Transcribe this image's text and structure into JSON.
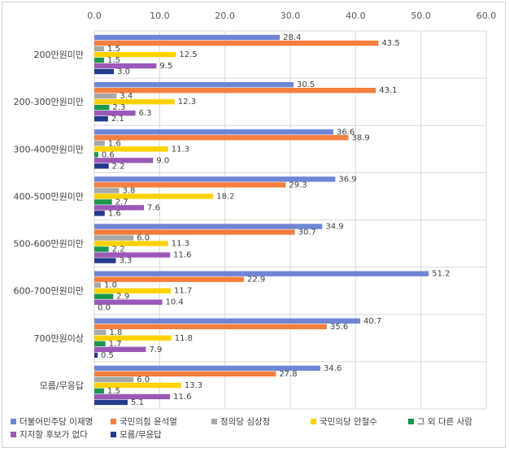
{
  "chart_data": {
    "type": "bar",
    "orientation": "horizontal",
    "title": "",
    "xlabel": "",
    "ylabel": "",
    "xlim": [
      0,
      60
    ],
    "x_ticks": [
      "0.0",
      "10.0",
      "20.0",
      "30.0",
      "40.0",
      "50.0",
      "60.0"
    ],
    "x_axis_position": "top",
    "grid": true,
    "legend_position": "bottom",
    "categories": [
      "200만원미만",
      "200-300만원미만",
      "300-400만원미만",
      "400-500만원미만",
      "500-600만원미만",
      "600-700만원미만",
      "700만원이상",
      "모름/무응답"
    ],
    "series": [
      {
        "name": "더불어민주당 이재명",
        "color": "#6f86d6",
        "values": [
          28.4,
          30.5,
          36.6,
          36.9,
          34.9,
          51.2,
          40.7,
          34.6
        ]
      },
      {
        "name": "국민의힘 윤석열",
        "color": "#f47f3e",
        "values": [
          43.5,
          43.1,
          38.9,
          29.3,
          30.7,
          22.9,
          35.6,
          27.8
        ]
      },
      {
        "name": "정의당 심상정",
        "color": "#a8a8a8",
        "values": [
          1.5,
          3.4,
          1.6,
          3.8,
          6.0,
          1.0,
          1.8,
          6.0
        ]
      },
      {
        "name": "국민의당 안철수",
        "color": "#ffd200",
        "values": [
          12.5,
          12.3,
          11.3,
          18.2,
          11.3,
          11.7,
          11.8,
          13.3
        ]
      },
      {
        "name": "그 외 다른 사람",
        "color": "#1a9850",
        "values": [
          1.5,
          2.3,
          0.6,
          2.7,
          2.2,
          2.9,
          1.7,
          1.5
        ]
      },
      {
        "name": "지지할 후보가 없다",
        "color": "#9b59b6",
        "values": [
          9.5,
          6.3,
          9.0,
          7.6,
          11.6,
          10.4,
          7.9,
          11.6
        ]
      },
      {
        "name": "모름/무응답",
        "color": "#243a8c",
        "values": [
          3.0,
          2.1,
          2.2,
          1.6,
          3.3,
          0.0,
          0.5,
          5.1
        ]
      }
    ]
  }
}
